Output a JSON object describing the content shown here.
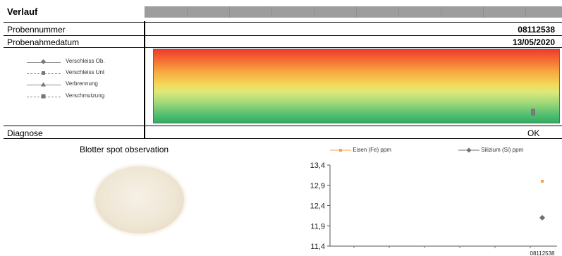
{
  "verlauf": {
    "title": "Verlauf"
  },
  "rows": {
    "probennummer": {
      "label": "Probennummer",
      "value": "08112538"
    },
    "probenahmedatum": {
      "label": "Probenahmedatum",
      "value": "13/05/2020"
    },
    "diagnose": {
      "label": "Diagnose",
      "value": "OK"
    }
  },
  "gauge_legend": [
    {
      "label": "Verschleiss Ob.",
      "icon": "diamond-marker-icon"
    },
    {
      "label": "Verschleiss Unt",
      "icon": "square-marker-icon"
    },
    {
      "label": "Verbrennung",
      "icon": "triangle-marker-icon"
    },
    {
      "label": "Verschmutzung",
      "icon": "square-marker-icon"
    }
  ],
  "colors": {
    "fe": "#f5a04a",
    "si": "#6e6e6e",
    "gauge_marker": "#7a7a7a"
  },
  "blotter": {
    "title": "Blotter spot observation"
  },
  "chart_data": {
    "type": "scatter",
    "categories": [
      "08112538"
    ],
    "series": [
      {
        "name": "Eisen (Fe) ppm",
        "values": [
          13.0
        ]
      },
      {
        "name": "Silizium (Si) ppm",
        "values": [
          12.1
        ]
      }
    ],
    "ylim": [
      11.4,
      13.4
    ],
    "yticks": [
      "13,4",
      "12,9",
      "12,4",
      "11,9",
      "11,4"
    ],
    "grid": false,
    "legend": "top"
  }
}
